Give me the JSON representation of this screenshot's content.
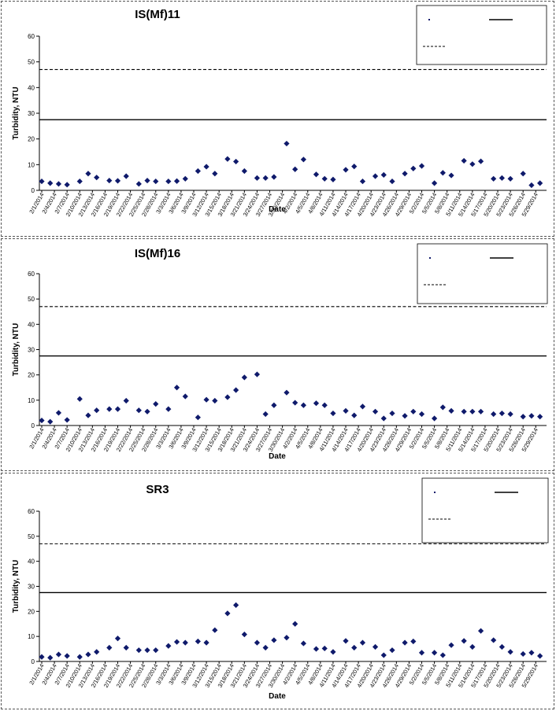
{
  "chart_data": [
    {
      "type": "scatter",
      "title": "IS(Mf)11",
      "xlabel": "Date",
      "ylabel": "Turbidity, NTU",
      "ylim": [
        0,
        60
      ],
      "yticks": [
        0,
        10,
        20,
        30,
        40,
        50,
        60
      ],
      "xticks": [
        "2/1/2014",
        "2/4/2014",
        "2/7/2014",
        "2/10/2014",
        "2/13/2014",
        "2/16/2014",
        "2/19/2014",
        "2/22/2014",
        "2/25/2014",
        "2/28/2014",
        "3/3/2014",
        "3/6/2014",
        "3/9/2014",
        "3/12/2014",
        "3/15/2014",
        "3/18/2014",
        "3/21/2014",
        "3/24/2014",
        "3/27/2014",
        "3/30/2014",
        "4/2/2014",
        "4/5/2014",
        "4/8/2014",
        "4/11/2014",
        "4/14/2014",
        "4/17/2014",
        "4/20/2014",
        "4/23/2014",
        "4/26/2014",
        "4/29/2014",
        "5/2/2014",
        "5/5/2014",
        "5/8/2014",
        "5/11/2014",
        "5/14/2014",
        "5/17/2014",
        "5/20/2014",
        "5/23/2014",
        "5/26/2014",
        "5/29/2014"
      ],
      "reference_lines": [
        {
          "style": "dashed",
          "value": 47
        },
        {
          "style": "solid",
          "value": 27.5
        }
      ],
      "legend_position": "top-right",
      "grid": false,
      "points": [
        [
          "2/1/2014",
          3.5
        ],
        [
          "2/3/2014",
          2.8
        ],
        [
          "2/5/2014",
          2.5
        ],
        [
          "2/7/2014",
          2.2
        ],
        [
          "2/10/2014",
          3.5
        ],
        [
          "2/12/2014",
          6.5
        ],
        [
          "2/14/2014",
          5
        ],
        [
          "2/17/2014",
          3.8
        ],
        [
          "2/19/2014",
          3.7
        ],
        [
          "2/21/2014",
          5.5
        ],
        [
          "2/24/2014",
          2.5
        ],
        [
          "2/26/2014",
          3.8
        ],
        [
          "2/28/2014",
          3.5
        ],
        [
          "3/3/2014",
          3.5
        ],
        [
          "3/5/2014",
          3.6
        ],
        [
          "3/7/2014",
          4.5
        ],
        [
          "3/10/2014",
          7.5
        ],
        [
          "3/12/2014",
          9.2
        ],
        [
          "3/14/2014",
          6.5
        ],
        [
          "3/17/2014",
          12.2
        ],
        [
          "3/19/2014",
          11.2
        ],
        [
          "3/21/2014",
          7.5
        ],
        [
          "3/24/2014",
          4.8
        ],
        [
          "3/26/2014",
          4.8
        ],
        [
          "3/28/2014",
          5.2
        ],
        [
          "3/31/2014",
          18.2
        ],
        [
          "4/2/2014",
          8.2
        ],
        [
          "4/4/2014",
          12
        ],
        [
          "4/7/2014",
          6.2
        ],
        [
          "4/9/2014",
          4.5
        ],
        [
          "4/11/2014",
          4.2
        ],
        [
          "4/14/2014",
          8
        ],
        [
          "4/16/2014",
          9.3
        ],
        [
          "4/18/2014",
          3.5
        ],
        [
          "4/21/2014",
          5.5
        ],
        [
          "4/23/2014",
          6
        ],
        [
          "4/25/2014",
          3.5
        ],
        [
          "4/28/2014",
          6.5
        ],
        [
          "4/30/2014",
          8.5
        ],
        [
          "5/2/2014",
          9.5
        ],
        [
          "5/5/2014",
          2.8
        ],
        [
          "5/7/2014",
          6.8
        ],
        [
          "5/9/2014",
          5.8
        ],
        [
          "5/12/2014",
          11.5
        ],
        [
          "5/14/2014",
          10.2
        ],
        [
          "5/16/2014",
          11.3
        ],
        [
          "5/19/2014",
          4.5
        ],
        [
          "5/21/2014",
          4.8
        ],
        [
          "5/23/2014",
          4.5
        ],
        [
          "5/26/2014",
          6.5
        ],
        [
          "5/28/2014",
          2
        ],
        [
          "5/30/2014",
          2.8
        ]
      ]
    },
    {
      "type": "scatter",
      "title": "IS(Mf)16",
      "xlabel": "Date",
      "ylabel": "Turbidity, NTU",
      "ylim": [
        0,
        60
      ],
      "yticks": [
        0,
        10,
        20,
        30,
        40,
        50,
        60
      ],
      "xticks": [
        "2/1/2014",
        "2/4/2014",
        "2/7/2014",
        "2/10/2014",
        "2/13/2014",
        "2/16/2014",
        "2/19/2014",
        "2/22/2014",
        "2/25/2014",
        "2/28/2014",
        "3/3/2014",
        "3/6/2014",
        "3/9/2014",
        "3/12/2014",
        "3/15/2014",
        "3/18/2014",
        "3/21/2014",
        "3/24/2014",
        "3/27/2014",
        "3/30/2014",
        "4/2/2014",
        "4/5/2014",
        "4/8/2014",
        "4/11/2014",
        "4/14/2014",
        "4/17/2014",
        "4/20/2014",
        "4/23/2014",
        "4/26/2014",
        "4/29/2014",
        "5/2/2014",
        "5/5/2014",
        "5/8/2014",
        "5/11/2014",
        "5/14/2014",
        "5/17/2014",
        "5/20/2014",
        "5/23/2014",
        "5/26/2014",
        "5/29/2014"
      ],
      "reference_lines": [
        {
          "style": "dashed",
          "value": 47
        },
        {
          "style": "solid",
          "value": 27.5
        }
      ],
      "legend_position": "top-right",
      "grid": false,
      "points": [
        [
          "2/1/2014",
          2
        ],
        [
          "2/3/2014",
          1.5
        ],
        [
          "2/5/2014",
          5
        ],
        [
          "2/7/2014",
          2.2
        ],
        [
          "2/10/2014",
          10.5
        ],
        [
          "2/12/2014",
          4
        ],
        [
          "2/14/2014",
          6
        ],
        [
          "2/17/2014",
          6.5
        ],
        [
          "2/19/2014",
          6.5
        ],
        [
          "2/21/2014",
          9.8
        ],
        [
          "2/24/2014",
          6
        ],
        [
          "2/26/2014",
          5.5
        ],
        [
          "2/28/2014",
          8.5
        ],
        [
          "3/3/2014",
          6.5
        ],
        [
          "3/5/2014",
          15
        ],
        [
          "3/7/2014",
          11.5
        ],
        [
          "3/10/2014",
          3.2
        ],
        [
          "3/12/2014",
          10.2
        ],
        [
          "3/14/2014",
          9.8
        ],
        [
          "3/17/2014",
          11.2
        ],
        [
          "3/19/2014",
          14
        ],
        [
          "3/21/2014",
          19
        ],
        [
          "3/24/2014",
          20.2
        ],
        [
          "3/26/2014",
          4.5
        ],
        [
          "3/28/2014",
          8
        ],
        [
          "3/31/2014",
          13
        ],
        [
          "4/2/2014",
          9
        ],
        [
          "4/4/2014",
          8
        ],
        [
          "4/7/2014",
          8.8
        ],
        [
          "4/9/2014",
          8
        ],
        [
          "4/11/2014",
          4.8
        ],
        [
          "4/14/2014",
          5.8
        ],
        [
          "4/16/2014",
          4
        ],
        [
          "4/18/2014",
          7.5
        ],
        [
          "4/21/2014",
          5.5
        ],
        [
          "4/23/2014",
          2.8
        ],
        [
          "4/25/2014",
          4.8
        ],
        [
          "4/28/2014",
          3.8
        ],
        [
          "4/30/2014",
          5.5
        ],
        [
          "5/2/2014",
          4.5
        ],
        [
          "5/5/2014",
          2.8
        ],
        [
          "5/7/2014",
          7.2
        ],
        [
          "5/9/2014",
          5.8
        ],
        [
          "5/12/2014",
          5.5
        ],
        [
          "5/14/2014",
          5.5
        ],
        [
          "5/16/2014",
          5.5
        ],
        [
          "5/19/2014",
          4.5
        ],
        [
          "5/21/2014",
          4.8
        ],
        [
          "5/23/2014",
          4.5
        ],
        [
          "5/26/2014",
          3.5
        ],
        [
          "5/28/2014",
          3.8
        ],
        [
          "5/30/2014",
          3.5
        ]
      ]
    },
    {
      "type": "scatter",
      "title": "SR3",
      "xlabel": "Date",
      "ylabel": "Turbidity, NTU",
      "ylim": [
        0,
        60
      ],
      "yticks": [
        0,
        10,
        20,
        30,
        40,
        50,
        60
      ],
      "xticks": [
        "2/1/2014",
        "2/4/2014",
        "2/7/2014",
        "2/10/2014",
        "2/13/2014",
        "2/16/2014",
        "2/19/2014",
        "2/22/2014",
        "2/25/2014",
        "2/28/2014",
        "3/3/2014",
        "3/6/2014",
        "3/9/2014",
        "3/12/2014",
        "3/15/2014",
        "3/18/2014",
        "3/21/2014",
        "3/24/2014",
        "3/27/2014",
        "3/30/2014",
        "4/2/2014",
        "4/5/2014",
        "4/8/2014",
        "4/11/2014",
        "4/14/2014",
        "4/17/2014",
        "4/20/2014",
        "4/23/2014",
        "4/26/2014",
        "4/29/2014",
        "5/2/2014",
        "5/5/2014",
        "5/8/2014",
        "5/11/2014",
        "5/14/2014",
        "5/17/2014",
        "5/20/2014",
        "5/23/2014",
        "5/26/2014",
        "5/29/2014"
      ],
      "reference_lines": [
        {
          "style": "dashed",
          "value": 47
        },
        {
          "style": "solid",
          "value": 27.5
        }
      ],
      "legend_position": "top-right",
      "grid": false,
      "points": [
        [
          "2/1/2014",
          1.8
        ],
        [
          "2/3/2014",
          1.5
        ],
        [
          "2/5/2014",
          2.8
        ],
        [
          "2/7/2014",
          2.2
        ],
        [
          "2/10/2014",
          1.8
        ],
        [
          "2/12/2014",
          2.8
        ],
        [
          "2/14/2014",
          3.8
        ],
        [
          "2/17/2014",
          5.5
        ],
        [
          "2/19/2014",
          9.2
        ],
        [
          "2/21/2014",
          5.5
        ],
        [
          "2/24/2014",
          4.5
        ],
        [
          "2/26/2014",
          4.5
        ],
        [
          "2/28/2014",
          4.5
        ],
        [
          "3/3/2014",
          6.2
        ],
        [
          "3/5/2014",
          7.8
        ],
        [
          "3/7/2014",
          7.5
        ],
        [
          "3/10/2014",
          8
        ],
        [
          "3/12/2014",
          7.5
        ],
        [
          "3/14/2014",
          12.5
        ],
        [
          "3/17/2014",
          19.2
        ],
        [
          "3/19/2014",
          22.5
        ],
        [
          "3/21/2014",
          10.8
        ],
        [
          "3/24/2014",
          7.5
        ],
        [
          "3/26/2014",
          5.5
        ],
        [
          "3/28/2014",
          8.5
        ],
        [
          "3/31/2014",
          9.5
        ],
        [
          "4/2/2014",
          15
        ],
        [
          "4/4/2014",
          7.2
        ],
        [
          "4/7/2014",
          5
        ],
        [
          "4/9/2014",
          5.2
        ],
        [
          "4/11/2014",
          3.8
        ],
        [
          "4/14/2014",
          8.2
        ],
        [
          "4/16/2014",
          5.5
        ],
        [
          "4/18/2014",
          7.5
        ],
        [
          "4/21/2014",
          5.8
        ],
        [
          "4/23/2014",
          2.5
        ],
        [
          "4/25/2014",
          4.5
        ],
        [
          "4/28/2014",
          7.5
        ],
        [
          "4/30/2014",
          8
        ],
        [
          "5/2/2014",
          3.5
        ],
        [
          "5/5/2014",
          3.5
        ],
        [
          "5/7/2014",
          2.5
        ],
        [
          "5/9/2014",
          6.5
        ],
        [
          "5/12/2014",
          8.2
        ],
        [
          "5/14/2014",
          5.8
        ],
        [
          "5/16/2014",
          12.2
        ],
        [
          "5/19/2014",
          8.5
        ],
        [
          "5/21/2014",
          5.8
        ],
        [
          "5/23/2014",
          3.8
        ],
        [
          "5/26/2014",
          3
        ],
        [
          "5/28/2014",
          3.5
        ],
        [
          "5/30/2014",
          2.2
        ]
      ]
    }
  ],
  "colors": {
    "marker": "#0f1a6b",
    "reference_line": "#000000"
  },
  "marker_shape": "diamond"
}
